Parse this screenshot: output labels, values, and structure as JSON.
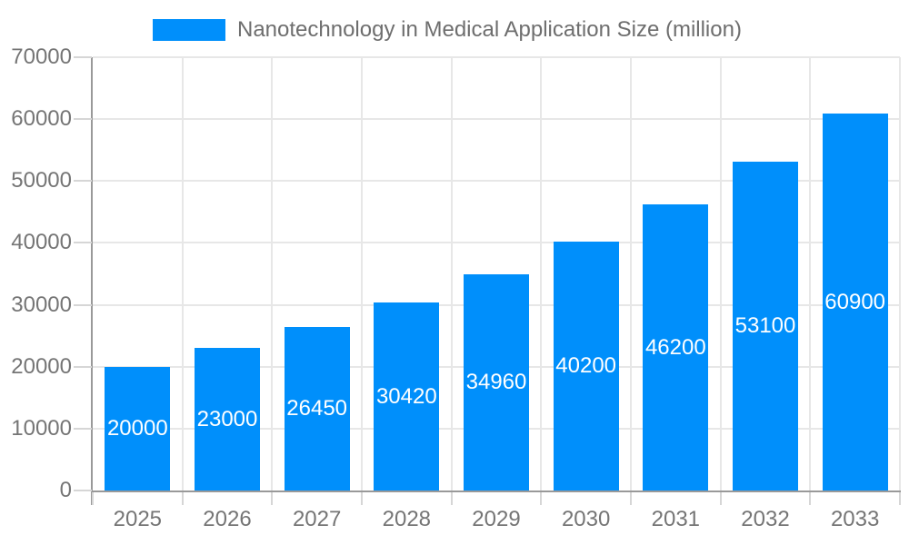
{
  "legend": {
    "label": "Nanotechnology in Medical Application Size (million)"
  },
  "chart_data": {
    "type": "bar",
    "title": "Nanotechnology in Medical Application Size (million)",
    "categories": [
      "2025",
      "2026",
      "2027",
      "2028",
      "2029",
      "2030",
      "2031",
      "2032",
      "2033"
    ],
    "values": [
      20000,
      23000,
      26450,
      30420,
      34960,
      40200,
      46200,
      53100,
      60900
    ],
    "value_labels": [
      "20000",
      "23000",
      "26450",
      "30420",
      "34960",
      "40200",
      "46200",
      "53100",
      "60900"
    ],
    "xlabel": "",
    "ylabel": "",
    "ylim": [
      0,
      70000
    ],
    "ytick_step": 10000,
    "y_tick_labels": [
      "0",
      "10000",
      "20000",
      "30000",
      "40000",
      "50000",
      "60000",
      "70000"
    ],
    "grid": true,
    "legend_position": "top",
    "series": [
      {
        "name": "Nanotechnology in Medical Application Size (million)",
        "values": [
          20000,
          23000,
          26450,
          30420,
          34960,
          40200,
          46200,
          53100,
          60900
        ]
      }
    ]
  },
  "colors": {
    "bar": "#008ffb",
    "grid": "#e7e7e7",
    "axis_line": "#999999",
    "tick": "#d6d6d6",
    "axis_label": "#757575",
    "legend_text": "#6e6e6e",
    "value_label": "#ffffff",
    "background": "#ffffff"
  }
}
